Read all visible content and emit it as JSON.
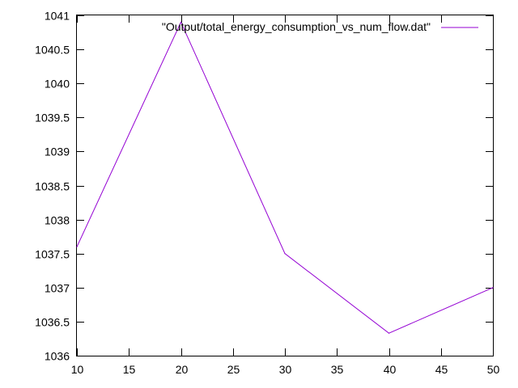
{
  "chart_data": {
    "type": "line",
    "title": "",
    "xlabel": "",
    "ylabel": "",
    "xlim": [
      10,
      50
    ],
    "ylim": [
      1036,
      1041
    ],
    "x_ticks": [
      "10",
      "15",
      "20",
      "25",
      "30",
      "35",
      "40",
      "45",
      "50"
    ],
    "y_ticks": [
      "1036",
      "1036.5",
      "1037",
      "1037.5",
      "1038",
      "1038.5",
      "1039",
      "1039.5",
      "1040",
      "1040.5",
      "1041"
    ],
    "grid": false,
    "legend_position": "top-right",
    "series": [
      {
        "name": "\"Output/total_energy_consumption_vs_num_flow.dat\"",
        "color": "#9400d3",
        "x": [
          10,
          20,
          30,
          40,
          50
        ],
        "y": [
          1037.6,
          1040.9,
          1037.5,
          1036.33,
          1037.0
        ]
      }
    ]
  }
}
